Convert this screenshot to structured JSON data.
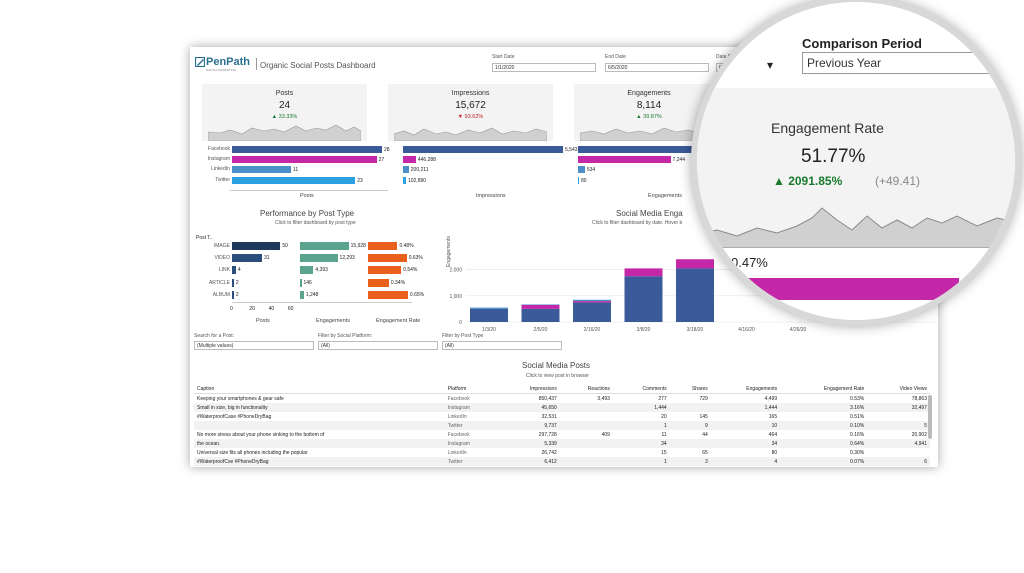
{
  "header": {
    "logo": "PenPath",
    "logo_tagline": "DIGITAL MARKETING",
    "title": "Organic Social Posts Dashboard",
    "start_date_label": "Start Date",
    "start_date_value": "1/1/2020",
    "end_date_label": "End Date",
    "end_date_value": "6/5/2020",
    "date_breakdown_label": "Date Bre",
    "date_breakdown_value": "Day"
  },
  "kpis": {
    "posts": {
      "label": "Posts",
      "value": "24",
      "change": "▲ 33.33%"
    },
    "impressions": {
      "label": "Impressions",
      "value": "15,672",
      "change": "▼ 93.62%"
    },
    "engagements": {
      "label": "Engagements",
      "value": "8,114",
      "change": "▲ 39.87%"
    }
  },
  "platforms": [
    "Facebook",
    "Instagram",
    "LinkedIn",
    "Twitter"
  ],
  "platform_bars": {
    "posts": {
      "footer": "Posts",
      "values": [
        28,
        27,
        11,
        23
      ],
      "labels": [
        "28",
        "27",
        "11",
        "23"
      ],
      "max": 28
    },
    "impressions": {
      "footer": "Impressions",
      "values": [
        5543037,
        446288,
        200211,
        102890
      ],
      "labels": [
        "5,543,037",
        "446,288",
        "200,211",
        "102,890"
      ],
      "max": 5543037
    },
    "engagements": {
      "footer": "Engagements",
      "values": [
        9000,
        7244,
        534,
        80
      ],
      "labels": [
        "",
        "7,244",
        "534",
        "80"
      ],
      "max": 9000
    }
  },
  "colors": {
    "facebook": "#3b5a9a",
    "instagram": "#c428a8",
    "linkedin": "#4a8fc7",
    "twitter": "#2da0e0",
    "image": "#1f3a5a",
    "engagements_teal": "#5aa38e",
    "rate_orange": "#e8601c",
    "up": "#1a7a2e",
    "down": "#c0212b"
  },
  "post_type": {
    "title": "Performance by Post Type",
    "subtitle": "Click to filter dashboard by post type",
    "column_header": "Post T..",
    "types": [
      "IMAGE",
      "VIDEO",
      "LINK",
      "ARTICLE",
      "ALBUM"
    ],
    "posts": {
      "values": [
        50,
        31,
        4,
        2,
        2
      ],
      "labels": [
        "50",
        "31",
        "4",
        "2",
        "2"
      ],
      "max": 60,
      "ticks": [
        "0",
        "20",
        "40",
        "60"
      ],
      "footer": "Posts"
    },
    "engagements": {
      "values": [
        15928,
        12293,
        4393,
        146,
        1248
      ],
      "labels": [
        "15,928",
        "12,293",
        "4,393",
        "146",
        "1,248"
      ],
      "max": 18000,
      "footer": "Engagements"
    },
    "rate": {
      "values": [
        0.48,
        0.63,
        0.54,
        0.34,
        0.65
      ],
      "labels": [
        "0.48%",
        "0.63%",
        "0.54%",
        "0.34%",
        "0.65%"
      ],
      "max": 0.7,
      "footer": "Engagement Rate"
    }
  },
  "engagement_chart": {
    "title": "Social Media Enga",
    "subtitle": "Click to filter dashboard by date. Hover b",
    "ylabel": "Engagements",
    "yticks": [
      "2,000",
      "1,000",
      "0"
    ],
    "dates": [
      "1/3/20",
      "2/5/20",
      "2/16/20",
      "3/8/20",
      "3/18/20",
      "4/16/20",
      "4/26/20"
    ]
  },
  "chart_data": {
    "type": "bar",
    "title": "Social Media Enga",
    "xlabel": "",
    "ylabel": "Engagements",
    "ylim": [
      0,
      2600
    ],
    "categories": [
      "1/3/20",
      "2/5/20",
      "2/16/20",
      "3/8/20",
      "3/18/20",
      "4/16/20",
      "4/26/20"
    ],
    "series": [
      {
        "name": "Facebook",
        "values": [
          500,
          500,
          750,
          1750,
          2050,
          0,
          0
        ]
      },
      {
        "name": "Instagram",
        "values": [
          0,
          150,
          50,
          300,
          350,
          0,
          0
        ]
      },
      {
        "name": "LinkedIn",
        "values": [
          50,
          20,
          50,
          0,
          0,
          0,
          0
        ]
      }
    ]
  },
  "filters": {
    "search_label": "Search for a Post:",
    "search_value": "(Multiple values)",
    "platform_label": "Filter by Social Platform:",
    "platform_value": "(All)",
    "posttype_label": "Filter by Post Type",
    "posttype_value": "(All)"
  },
  "posts_table": {
    "title": "Social Media Posts",
    "subtitle": "Click to view post in browser",
    "columns": [
      "Caption",
      "Platform",
      "Impressions",
      "Reactions",
      "Comments",
      "Shares",
      "Engagements",
      "Engagement Rate",
      "Video Views"
    ],
    "rows": [
      [
        "Keeping your smartphones & gear safe",
        "Facebook",
        "850,437",
        "3,493",
        "277",
        "729",
        "4,499",
        "0.53%",
        "78,863"
      ],
      [
        "Small in size, big in functionality",
        "Instagram",
        "45,650",
        "",
        "1,444",
        "",
        "1,444",
        "3.16%",
        "32,497"
      ],
      [
        "#WaterproofCase #PhoneDryBag",
        "LinkedIn",
        "32,531",
        "",
        "20",
        "145",
        "165",
        "0.51%",
        ""
      ],
      [
        "",
        "Twitter",
        "9,737",
        "",
        "1",
        "9",
        "10",
        "0.10%",
        "5"
      ],
      [
        "No more stress about your phone sinking to the bottom of",
        "Facebook",
        "297,728",
        "409",
        "11",
        "44",
        "464",
        "0.16%",
        "20,902"
      ],
      [
        "the ocean.",
        "Instagram",
        "5,339",
        "",
        "34",
        "",
        "34",
        "0.64%",
        "4,941"
      ],
      [
        "Universal size fits all phones including the popular",
        "LinkedIn",
        "26,742",
        "",
        "15",
        "65",
        "80",
        "0.30%",
        ""
      ],
      [
        "#WaterproofCse #PhoneDryBag",
        "Twitter",
        "6,412",
        "",
        "1",
        "3",
        "4",
        "0.07%",
        "6"
      ]
    ]
  },
  "magnifier": {
    "comparison_label": "Comparison Period",
    "comparison_value": "Previous Year",
    "kpi_label": "Engagement Rate",
    "kpi_value": "51.77%",
    "kpi_change": "▲ 2091.85%",
    "kpi_change_abs": "(+49.41)",
    "rate_label": "0.47%"
  }
}
